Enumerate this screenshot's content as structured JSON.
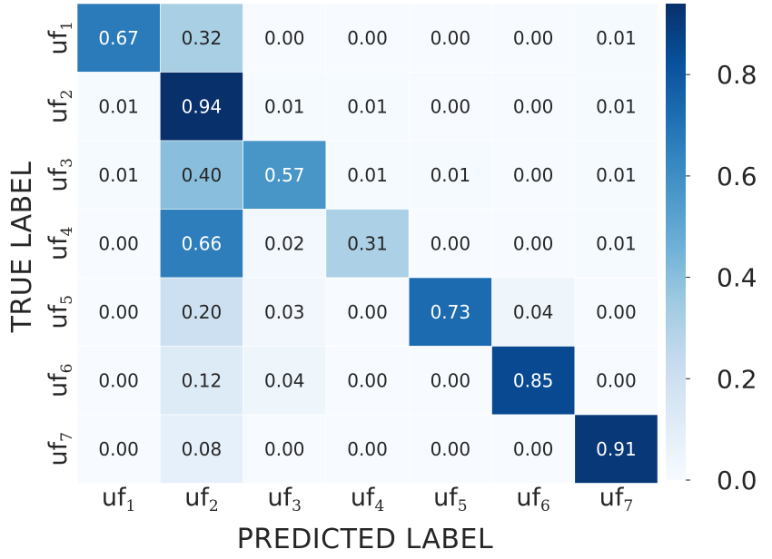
{
  "chart_data": {
    "type": "heatmap",
    "xlabel": "PREDICTED LABEL",
    "ylabel": "TRUE LABEL",
    "x_categories": [
      "uf1",
      "uf2",
      "uf3",
      "uf4",
      "uf5",
      "uf6",
      "uf7"
    ],
    "y_categories": [
      "uf1",
      "uf2",
      "uf3",
      "uf4",
      "uf5",
      "uf6",
      "uf7"
    ],
    "tick_labels": [
      {
        "base": "uf",
        "sub": "1"
      },
      {
        "base": "uf",
        "sub": "2"
      },
      {
        "base": "uf",
        "sub": "3"
      },
      {
        "base": "uf",
        "sub": "4"
      },
      {
        "base": "uf",
        "sub": "5"
      },
      {
        "base": "uf",
        "sub": "6"
      },
      {
        "base": "uf",
        "sub": "7"
      }
    ],
    "values": [
      [
        0.67,
        0.32,
        0.0,
        0.0,
        0.0,
        0.0,
        0.01
      ],
      [
        0.01,
        0.94,
        0.01,
        0.01,
        0.0,
        0.0,
        0.01
      ],
      [
        0.01,
        0.4,
        0.57,
        0.01,
        0.01,
        0.0,
        0.01
      ],
      [
        0.0,
        0.66,
        0.02,
        0.31,
        0.0,
        0.0,
        0.01
      ],
      [
        0.0,
        0.2,
        0.03,
        0.0,
        0.73,
        0.04,
        0.0
      ],
      [
        0.0,
        0.12,
        0.04,
        0.0,
        0.0,
        0.85,
        0.0
      ],
      [
        0.0,
        0.08,
        0.0,
        0.0,
        0.0,
        0.0,
        0.91
      ]
    ],
    "value_format": "0.00",
    "colormap": "Blues",
    "colorbar": {
      "range": [
        0.0,
        0.94
      ],
      "ticks": [
        0.0,
        0.2,
        0.4,
        0.6,
        0.8
      ],
      "tick_labels": [
        "0.0",
        "0.2",
        "0.4",
        "0.6",
        "0.8"
      ]
    },
    "colors": {
      "low": "#f7fbff",
      "high": "#08306b",
      "text_dark": "#262626",
      "text_light": "#ffffff"
    }
  }
}
